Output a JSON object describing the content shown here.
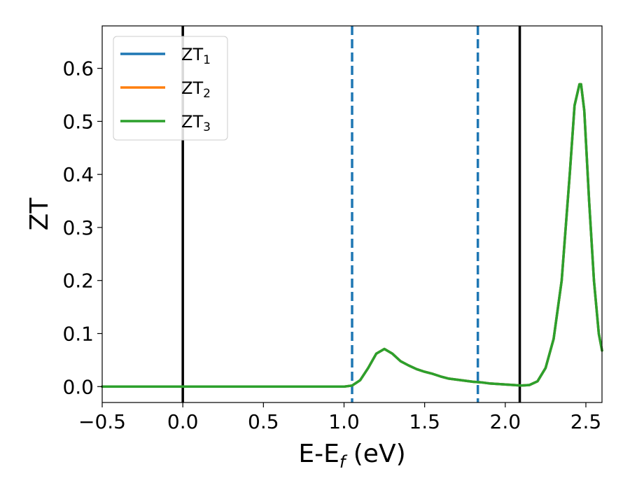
{
  "chart_data": {
    "type": "line",
    "xlabel": {
      "main": "E-E",
      "sub": "f",
      "unit": " (eV)"
    },
    "ylabel": "ZT",
    "xlim": [
      -0.5,
      2.6
    ],
    "ylim": [
      -0.03,
      0.68
    ],
    "xticks": [
      -0.5,
      0.0,
      0.5,
      1.0,
      1.5,
      2.0,
      2.5
    ],
    "xtick_labels": [
      "−0.5",
      "0.0",
      "0.5",
      "1.0",
      "1.5",
      "2.0",
      "2.5"
    ],
    "yticks": [
      0.0,
      0.1,
      0.2,
      0.3,
      0.4,
      0.5,
      0.6
    ],
    "ytick_labels": [
      "0.0",
      "0.1",
      "0.2",
      "0.3",
      "0.4",
      "0.5",
      "0.6"
    ],
    "grid": false,
    "legend_position": "top-left",
    "vlines": [
      {
        "x": 0.0,
        "style": "solid",
        "color": "#000000"
      },
      {
        "x": 1.05,
        "style": "dashed",
        "color": "#1f77b4"
      },
      {
        "x": 1.83,
        "style": "dashed",
        "color": "#1f77b4"
      },
      {
        "x": 2.09,
        "style": "solid",
        "color": "#000000"
      }
    ],
    "series": [
      {
        "name": "ZT",
        "sub": "1",
        "color": "#1f77b4"
      },
      {
        "name": "ZT",
        "sub": "2",
        "color": "#ff7f0e"
      },
      {
        "name": "ZT",
        "sub": "3",
        "color": "#2ca02c"
      }
    ],
    "x": [
      -0.5,
      0.0,
      0.5,
      1.0,
      1.05,
      1.1,
      1.15,
      1.2,
      1.25,
      1.3,
      1.35,
      1.4,
      1.45,
      1.5,
      1.55,
      1.6,
      1.65,
      1.7,
      1.75,
      1.8,
      1.85,
      1.9,
      1.95,
      2.0,
      2.05,
      2.1,
      2.15,
      2.2,
      2.25,
      2.3,
      2.35,
      2.4,
      2.43,
      2.46,
      2.47,
      2.49,
      2.52,
      2.55,
      2.58,
      2.6
    ],
    "y": [
      0.0,
      0.0,
      0.0,
      0.0,
      0.002,
      0.012,
      0.035,
      0.062,
      0.071,
      0.062,
      0.048,
      0.04,
      0.033,
      0.028,
      0.024,
      0.019,
      0.015,
      0.013,
      0.011,
      0.009,
      0.008,
      0.006,
      0.005,
      0.004,
      0.003,
      0.002,
      0.003,
      0.01,
      0.035,
      0.09,
      0.2,
      0.4,
      0.53,
      0.57,
      0.57,
      0.52,
      0.35,
      0.2,
      0.1,
      0.068
    ]
  }
}
